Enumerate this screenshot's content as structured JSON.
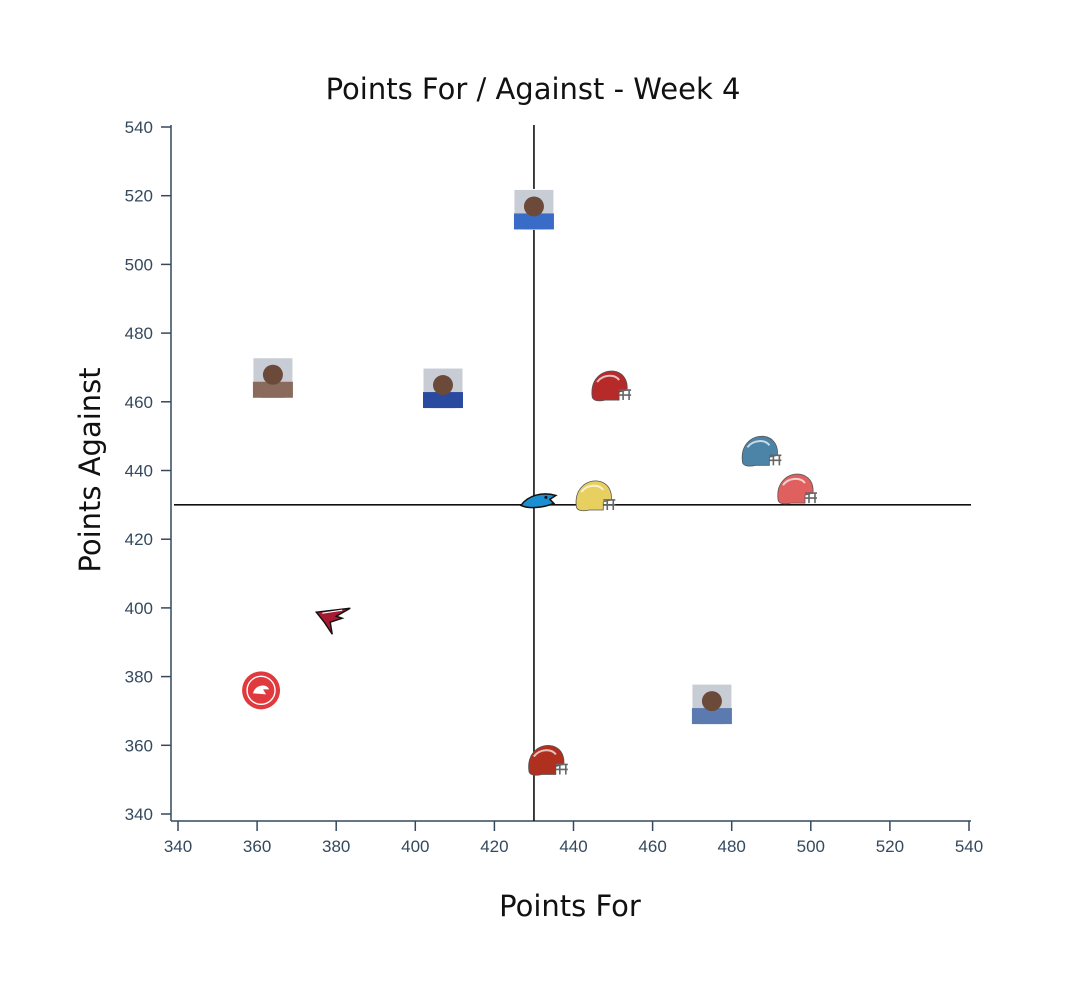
{
  "chart_data": {
    "type": "scatter",
    "title": "Points For / Against - Week 4",
    "xlabel": "Points For",
    "ylabel": "Points Against",
    "xlim": [
      340,
      540
    ],
    "ylim": [
      340,
      540
    ],
    "x_ticks": [
      "340",
      "360",
      "380",
      "400",
      "420",
      "440",
      "460",
      "480",
      "500",
      "520",
      "540"
    ],
    "y_ticks": [
      "340",
      "360",
      "380",
      "400",
      "420",
      "440",
      "460",
      "480",
      "500",
      "520",
      "540"
    ],
    "reference_lines": {
      "x": 430,
      "y": 430
    },
    "points": [
      {
        "x": 430,
        "y": 516,
        "icon": "player-photo-icon",
        "color": "#3a6cc7"
      },
      {
        "x": 364,
        "y": 467,
        "icon": "person-photo-icon",
        "color": "#8a6a5a"
      },
      {
        "x": 407,
        "y": 464,
        "icon": "player-photo-icon",
        "color": "#2a4aa0"
      },
      {
        "x": 449,
        "y": 464,
        "icon": "red-helmet-icon",
        "color": "#b72a2a"
      },
      {
        "x": 487,
        "y": 445,
        "icon": "blue-helmet-icon",
        "color": "#4c84a8"
      },
      {
        "x": 496,
        "y": 434,
        "icon": "white-red-helmet-icon",
        "color": "#e06060"
      },
      {
        "x": 445,
        "y": 432,
        "icon": "yellow-helmet-icon",
        "color": "#e8d060"
      },
      {
        "x": 431,
        "y": 431,
        "icon": "panther-logo-icon",
        "color": "#1b8fcf"
      },
      {
        "x": 379,
        "y": 397,
        "icon": "falcon-logo-icon",
        "color": "#a71930"
      },
      {
        "x": 361,
        "y": 376,
        "icon": "hawks-logo-icon",
        "color": "#e03a3e"
      },
      {
        "x": 475,
        "y": 372,
        "icon": "cheerleader-photo-icon",
        "color": "#5a7ab0"
      },
      {
        "x": 433,
        "y": 355,
        "icon": "red-helmet-icon",
        "color": "#b03020"
      }
    ]
  }
}
